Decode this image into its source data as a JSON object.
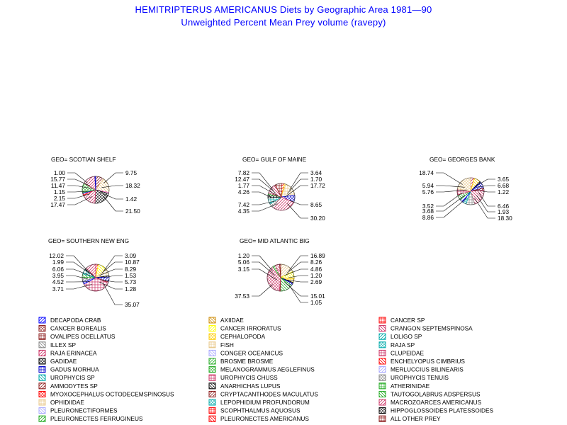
{
  "title": "HEMITRIPTERUS AMERICANUS Diets by Geographic Area 1981—90",
  "subtitle": "Unweighted Percent Mean Prey volume (ravepy)",
  "chart_data": {
    "type": "pie",
    "charts": [
      {
        "label": "GEO= SCOTIAN SHELF",
        "left_labels": [
          "1.00",
          "15.77",
          "11.47",
          "1.15",
          "2.15",
          "17.47"
        ],
        "right_labels": [
          "9.75",
          "18.32",
          "1.42",
          "21.50"
        ],
        "slices": [
          {
            "value": 9.75,
            "color": "#8b1a1a"
          },
          {
            "value": 18.32,
            "color": "#e8c88a"
          },
          {
            "value": 1.42,
            "color": "#ff66cc"
          },
          {
            "value": 21.5,
            "color": "#000000"
          },
          {
            "value": 17.47,
            "color": "#cc3366"
          },
          {
            "value": 2.15,
            "color": "#ff0000"
          },
          {
            "value": 1.15,
            "color": "#0000ff"
          },
          {
            "value": 11.47,
            "color": "#22aa22"
          },
          {
            "value": 15.77,
            "color": "#cc3366"
          },
          {
            "value": 1.0,
            "color": "#0000cc"
          }
        ]
      },
      {
        "label": "GEO= GULF OF MAINE",
        "left_labels": [
          "7.82",
          "12.47",
          "1.77",
          "4.26",
          "7.42",
          "4.35"
        ],
        "right_labels": [
          "3.64",
          "1.70",
          "17.72",
          "8.65",
          "30.20"
        ],
        "slices": [
          {
            "value": 3.64,
            "color": "#ff0000"
          },
          {
            "value": 1.7,
            "color": "#ffcc00"
          },
          {
            "value": 17.72,
            "color": "#e8c88a"
          },
          {
            "value": 8.65,
            "color": "#0000cc"
          },
          {
            "value": 30.2,
            "color": "#cc3366"
          },
          {
            "value": 4.35,
            "color": "#888888"
          },
          {
            "value": 7.42,
            "color": "#00aaaa"
          },
          {
            "value": 4.26,
            "color": "#000000"
          },
          {
            "value": 1.77,
            "color": "#22aa22"
          },
          {
            "value": 12.47,
            "color": "#cc3366"
          },
          {
            "value": 7.82,
            "color": "#8b1a1a"
          }
        ]
      },
      {
        "label": "GEO= GEORGES BANK",
        "left_labels": [
          "18.74",
          "5.94",
          "5.76",
          "3.52",
          "3.68",
          "8.86"
        ],
        "right_labels": [
          "3.65",
          "6.68",
          "1.22",
          "6.46",
          "1.93",
          "18.30"
        ],
        "slices": [
          {
            "value": 3.65,
            "color": "#cc3366"
          },
          {
            "value": 6.68,
            "color": "#ffcc00"
          },
          {
            "value": 1.22,
            "color": "#000000"
          },
          {
            "value": 6.46,
            "color": "#0000cc"
          },
          {
            "value": 1.93,
            "color": "#8b1a1a"
          },
          {
            "value": 18.3,
            "color": "#cc3366"
          },
          {
            "value": 8.86,
            "color": "#888888"
          },
          {
            "value": 3.68,
            "color": "#00aaaa"
          },
          {
            "value": 3.52,
            "color": "#0000ff"
          },
          {
            "value": 5.76,
            "color": "#22aa22"
          },
          {
            "value": 5.94,
            "color": "#cc3366"
          },
          {
            "value": 18.74,
            "color": "#e8c88a"
          }
        ]
      },
      {
        "label": "GEO= SOUTHERN NEW ENG",
        "left_labels": [
          "12.02",
          "1.99",
          "6.06",
          "3.95",
          "4.52",
          "3.71"
        ],
        "right_labels": [
          "3.09",
          "10.87",
          "8.29",
          "1.53",
          "5.73",
          "1.28",
          "35.07"
        ],
        "slices": [
          {
            "value": 3.09,
            "color": "#ff0000"
          },
          {
            "value": 10.87,
            "color": "#ffff00"
          },
          {
            "value": 8.29,
            "color": "#e8c88a"
          },
          {
            "value": 1.53,
            "color": "#000000"
          },
          {
            "value": 5.73,
            "color": "#0000cc"
          },
          {
            "value": 1.28,
            "color": "#8b1a1a"
          },
          {
            "value": 35.07,
            "color": "#cc3366"
          },
          {
            "value": 3.71,
            "color": "#0000ff"
          },
          {
            "value": 4.52,
            "color": "#888888"
          },
          {
            "value": 3.95,
            "color": "#22aa22"
          },
          {
            "value": 6.06,
            "color": "#00aaaa"
          },
          {
            "value": 1.99,
            "color": "#000000"
          },
          {
            "value": 12.02,
            "color": "#cc3366"
          }
        ]
      },
      {
        "label": "GEO= MID ATLANTIC BIG",
        "left_labels": [
          "1.20",
          "5.06",
          "3.15",
          "37.53"
        ],
        "right_labels": [
          "16.89",
          "8.26",
          "4.86",
          "1.20",
          "2.69",
          "15.01",
          "1.05"
        ],
        "slices": [
          {
            "value": 16.89,
            "color": "#e8c88a"
          },
          {
            "value": 8.26,
            "color": "#ffff00"
          },
          {
            "value": 4.86,
            "color": "#ffcc00"
          },
          {
            "value": 1.2,
            "color": "#000000"
          },
          {
            "value": 2.69,
            "color": "#0000cc"
          },
          {
            "value": 15.01,
            "color": "#22aa22"
          },
          {
            "value": 1.05,
            "color": "#8b1a1a"
          },
          {
            "value": 37.53,
            "color": "#cc3366"
          },
          {
            "value": 3.15,
            "color": "#22aa22"
          },
          {
            "value": 5.06,
            "color": "#cc3366"
          },
          {
            "value": 1.2,
            "color": "#8b1a1a"
          }
        ]
      }
    ],
    "legend": [
      {
        "label": "DECAPODA CRAB",
        "color": "#0000ff"
      },
      {
        "label": "AXIIDAE",
        "color": "#cc8800"
      },
      {
        "label": "CANCER SP",
        "color": "#ff0000"
      },
      {
        "label": "CANCER BOREALIS",
        "color": "#8b1a1a"
      },
      {
        "label": "CANCER IRRORATUS",
        "color": "#ffff00"
      },
      {
        "label": "CRANGON SEPTEMSPINOSA",
        "color": "#cc3366"
      },
      {
        "label": "OVALIPES OCELLATUS",
        "color": "#8b1a1a"
      },
      {
        "label": "CEPHALOPODA",
        "color": "#ffcc00"
      },
      {
        "label": "LOLIGO SP",
        "color": "#00aaaa"
      },
      {
        "label": "ILLEX SP",
        "color": "#888888"
      },
      {
        "label": "FISH",
        "color": "#e8c88a"
      },
      {
        "label": "RAJA SP",
        "color": "#00aaaa"
      },
      {
        "label": "RAJA ERINACEA",
        "color": "#cc3366"
      },
      {
        "label": "CONGER OCEANICUS",
        "color": "#aaaaff"
      },
      {
        "label": "CLUPEIDAE",
        "color": "#cc3366"
      },
      {
        "label": "GADIDAE",
        "color": "#000000"
      },
      {
        "label": "BROSME BROSME",
        "color": "#22aa22"
      },
      {
        "label": "ENCHELYOPUS CIMBRIUS",
        "color": "#ff0000"
      },
      {
        "label": "GADUS MORHUA",
        "color": "#0000cc"
      },
      {
        "label": "MELANOGRAMMUS AEGLEFINUS",
        "color": "#22aa22"
      },
      {
        "label": "MERLUCCIUS BILINEARIS",
        "color": "#aaaaff"
      },
      {
        "label": "UROPHYCIS SP",
        "color": "#00aaaa"
      },
      {
        "label": "UROPHYCIS CHUSS",
        "color": "#cc3366"
      },
      {
        "label": "UROPHYCIS TENUIS",
        "color": "#888888"
      },
      {
        "label": "AMMODYTES SP",
        "color": "#8b1a1a"
      },
      {
        "label": "ANARHICHAS LUPUS",
        "color": "#000000"
      },
      {
        "label": "ATHERINIDAE",
        "color": "#22aa22"
      },
      {
        "label": "MYOXOCEPHALUS OCTODECEMSPINOSUS",
        "color": "#ff0000"
      },
      {
        "label": "CRYPTACANTHODES MACULATUS",
        "color": "#8b1a1a"
      },
      {
        "label": "TAUTOGOLABRUS ADSPERSUS",
        "color": "#22aa22"
      },
      {
        "label": "OPHIDIIDAE",
        "color": "#e8c88a"
      },
      {
        "label": "LEPOPHIDIUM PROFUNDORUM",
        "color": "#00aaaa"
      },
      {
        "label": "MACROZOARCES AMERICANUS",
        "color": "#cc3366"
      },
      {
        "label": "PLEURONECTIFORMES",
        "color": "#aaaaff"
      },
      {
        "label": "SCOPHTHALMUS AQUOSUS",
        "color": "#ff0000"
      },
      {
        "label": "HIPPOGLOSSOIDES PLATESSOIDES",
        "color": "#000000"
      },
      {
        "label": "PLEURONECTES FERRUGINEUS",
        "color": "#22aa22"
      },
      {
        "label": "PLEURONECTES AMERICANUS",
        "color": "#ff0000"
      },
      {
        "label": "ALL OTHER PREY",
        "color": "#8b1a1a"
      }
    ]
  }
}
